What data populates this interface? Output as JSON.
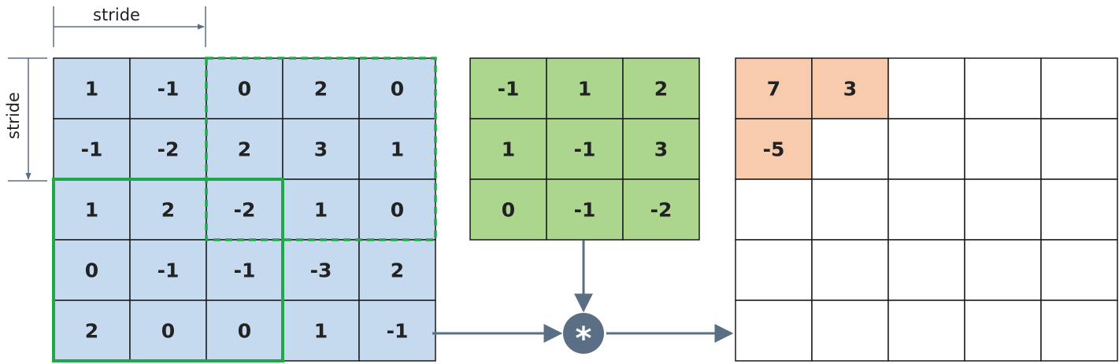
{
  "stride_labels": {
    "horizontal": "stride",
    "vertical": "stride"
  },
  "colors": {
    "input_fill": "#c5d9ef",
    "kernel_fill": "#acd58d",
    "output_fill": "#f8cbad",
    "window_stroke": "#22a64a",
    "arrow": "#5b6f84",
    "grid_stroke": "#1a1a1a"
  },
  "input_matrix": {
    "rows": [
      [
        "1",
        "-1",
        "0",
        "2",
        "0"
      ],
      [
        "-1",
        "-2",
        "2",
        "3",
        "1"
      ],
      [
        "1",
        "2",
        "-2",
        "1",
        "0"
      ],
      [
        "0",
        "-1",
        "-1",
        "-3",
        "2"
      ],
      [
        "2",
        "0",
        "0",
        "1",
        "-1"
      ]
    ]
  },
  "windows": [
    {
      "name": "current-window",
      "style": "solid",
      "start_row": 2,
      "start_col": 0,
      "size": 3
    },
    {
      "name": "previous-window",
      "style": "dashed",
      "start_row": 0,
      "start_col": 2,
      "size": 3
    }
  ],
  "kernel_matrix": {
    "rows": [
      [
        "-1",
        "1",
        "2"
      ],
      [
        "1",
        "-1",
        "3"
      ],
      [
        "0",
        "-1",
        "-2"
      ]
    ]
  },
  "operator": {
    "symbol": "*",
    "icon": "convolution-operator-icon"
  },
  "output_matrix": {
    "rows": [
      [
        "7",
        "3",
        "",
        "",
        ""
      ],
      [
        "-5",
        "",
        "",
        "",
        ""
      ],
      [
        "",
        "",
        "",
        "",
        ""
      ],
      [
        "",
        "",
        "",
        "",
        ""
      ],
      [
        "",
        "",
        "",
        "",
        ""
      ]
    ],
    "filled": [
      [
        0,
        0
      ],
      [
        0,
        1
      ],
      [
        1,
        0
      ]
    ]
  }
}
